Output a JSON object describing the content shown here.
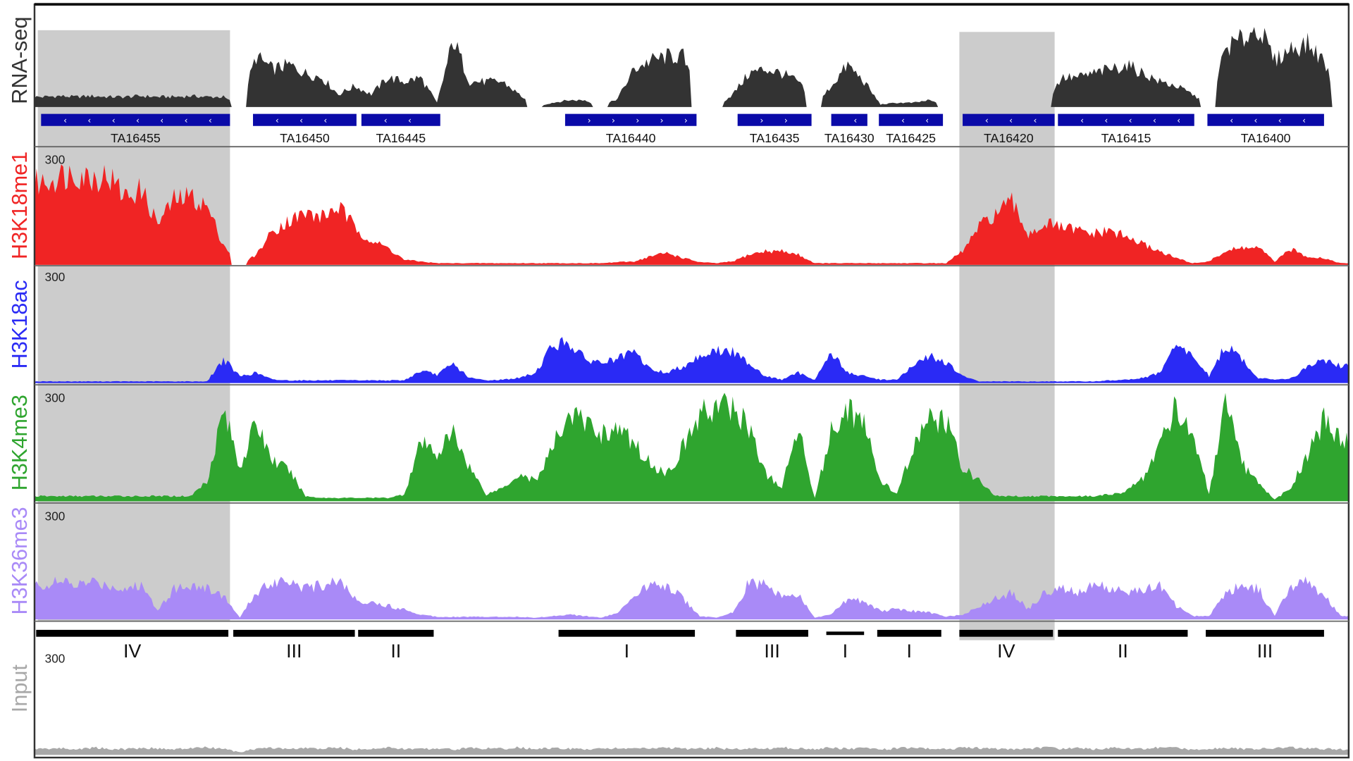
{
  "chart_data": {
    "type": "area",
    "title": "",
    "x_units": "genomic bins",
    "xlim": [
      0,
      80
    ],
    "tracks": [
      {
        "name": "RNA-seq",
        "color": "#333333",
        "scale_label": null,
        "ymax": 100,
        "values": [
          12,
          13,
          12,
          13,
          12,
          12,
          13,
          12,
          12,
          13,
          12,
          12,
          0,
          60,
          45,
          50,
          40,
          35,
          15,
          25,
          15,
          35,
          30,
          35,
          5,
          80,
          30,
          30,
          30,
          15,
          0,
          5,
          8,
          8,
          0,
          10,
          45,
          55,
          60,
          60,
          0,
          0,
          15,
          40,
          45,
          40,
          30,
          0,
          25,
          50,
          30,
          3,
          5,
          5,
          8,
          0,
          0,
          0,
          0,
          0,
          0,
          0,
          35,
          35,
          40,
          45,
          50,
          40,
          30,
          25,
          15,
          0,
          70,
          80,
          95,
          55,
          70,
          75,
          55,
          0
        ]
      },
      {
        "name": "H3K18me1",
        "color": "#f02424",
        "scale_label": "300",
        "ymax": 300,
        "values": [
          240,
          260,
          270,
          255,
          260,
          200,
          220,
          120,
          190,
          200,
          170,
          60,
          0,
          30,
          100,
          130,
          150,
          140,
          170,
          110,
          70,
          50,
          15,
          10,
          5,
          5,
          5,
          5,
          5,
          5,
          5,
          5,
          5,
          5,
          5,
          8,
          10,
          25,
          35,
          20,
          8,
          5,
          10,
          30,
          40,
          40,
          30,
          5,
          5,
          5,
          5,
          5,
          5,
          5,
          5,
          5,
          40,
          110,
          150,
          180,
          90,
          120,
          110,
          100,
          90,
          100,
          80,
          60,
          40,
          20,
          5,
          10,
          40,
          50,
          50,
          10,
          45,
          25,
          20,
          5
        ]
      },
      {
        "name": "H3K18ac",
        "color": "#2a2af5",
        "scale_label": "300",
        "ymax": 300,
        "values": [
          5,
          5,
          5,
          5,
          5,
          5,
          5,
          5,
          5,
          5,
          5,
          70,
          20,
          30,
          10,
          8,
          8,
          8,
          8,
          8,
          8,
          8,
          8,
          35,
          25,
          55,
          15,
          8,
          10,
          15,
          30,
          110,
          120,
          70,
          60,
          70,
          90,
          40,
          30,
          50,
          80,
          95,
          90,
          60,
          20,
          10,
          30,
          10,
          90,
          30,
          20,
          10,
          10,
          50,
          80,
          60,
          20,
          5,
          5,
          5,
          5,
          5,
          5,
          5,
          5,
          8,
          10,
          15,
          30,
          110,
          80,
          20,
          110,
          70,
          15,
          10,
          15,
          45,
          70,
          50
        ]
      },
      {
        "name": "H3K4me3",
        "color": "#2fa52f",
        "scale_label": "300",
        "ymax": 300,
        "values": [
          15,
          15,
          15,
          15,
          15,
          15,
          15,
          15,
          15,
          15,
          60,
          270,
          100,
          230,
          120,
          90,
          15,
          10,
          10,
          10,
          10,
          10,
          20,
          170,
          140,
          200,
          100,
          20,
          40,
          80,
          60,
          150,
          260,
          230,
          200,
          210,
          170,
          110,
          80,
          160,
          250,
          280,
          270,
          220,
          80,
          40,
          220,
          10,
          200,
          280,
          220,
          60,
          20,
          160,
          240,
          230,
          100,
          60,
          15,
          15,
          15,
          15,
          15,
          15,
          15,
          20,
          30,
          70,
          170,
          280,
          200,
          20,
          280,
          110,
          50,
          5,
          40,
          140,
          240,
          180
        ]
      },
      {
        "name": "H3K36me3",
        "color": "#a98af7",
        "scale_label": "300",
        "ymax": 300,
        "values": [
          100,
          110,
          100,
          110,
          100,
          90,
          100,
          30,
          90,
          100,
          90,
          70,
          5,
          80,
          110,
          120,
          90,
          100,
          120,
          60,
          50,
          40,
          30,
          15,
          8,
          8,
          8,
          8,
          8,
          8,
          5,
          10,
          15,
          10,
          5,
          20,
          60,
          110,
          100,
          60,
          10,
          5,
          20,
          110,
          100,
          70,
          70,
          5,
          15,
          60,
          55,
          25,
          30,
          25,
          20,
          8,
          15,
          40,
          60,
          80,
          30,
          80,
          90,
          80,
          100,
          90,
          80,
          85,
          100,
          40,
          10,
          10,
          80,
          100,
          90,
          10,
          100,
          110,
          70,
          10
        ]
      },
      {
        "name": "Input",
        "color": "#a8a8a8",
        "scale_label": "300",
        "ymax": 300,
        "values": [
          20,
          22,
          18,
          24,
          20,
          19,
          23,
          21,
          18,
          22,
          24,
          20,
          8,
          21,
          23,
          19,
          22,
          20,
          24,
          18,
          21,
          23,
          20,
          19,
          22,
          18,
          23,
          21,
          20,
          24,
          19,
          22,
          20,
          18,
          23,
          21,
          22,
          20,
          24,
          19,
          21,
          23,
          18,
          22,
          20,
          24,
          21,
          19,
          23,
          20,
          22,
          18,
          21,
          24,
          20,
          19,
          23,
          22,
          20,
          18,
          21,
          24,
          20,
          22,
          19,
          23,
          21,
          20,
          24,
          22,
          18,
          21,
          23,
          20,
          19,
          22,
          24,
          21,
          20,
          18
        ]
      }
    ],
    "genes": [
      {
        "name": "TA16455",
        "strand": "-",
        "start": 0.4,
        "end": 11.9
      },
      {
        "name": "TA16450",
        "strand": "-",
        "start": 13.3,
        "end": 19.6
      },
      {
        "name": "TA16445",
        "strand": "-",
        "start": 19.9,
        "end": 24.7
      },
      {
        "name": "TA16440",
        "strand": "+",
        "start": 32.3,
        "end": 40.3
      },
      {
        "name": "TA16435",
        "strand": "+",
        "start": 42.8,
        "end": 47.3
      },
      {
        "name": "TA16430",
        "strand": "-",
        "start": 48.5,
        "end": 50.7
      },
      {
        "name": "TA16425",
        "strand": "-",
        "start": 51.4,
        "end": 55.3
      },
      {
        "name": "TA16420",
        "strand": "-",
        "start": 56.5,
        "end": 62.1
      },
      {
        "name": "TA16415",
        "strand": "-",
        "start": 62.3,
        "end": 70.6
      },
      {
        "name": "TA16400",
        "strand": "-",
        "start": 71.4,
        "end": 78.5
      }
    ],
    "gene_color": "#0a0aa8",
    "states": [
      {
        "label": "IV",
        "start": 0.1,
        "end": 11.8
      },
      {
        "label": "III",
        "start": 12.1,
        "end": 19.5
      },
      {
        "label": "II",
        "start": 19.7,
        "end": 24.3
      },
      {
        "label": "I",
        "start": 31.9,
        "end": 40.2
      },
      {
        "label": "III",
        "start": 42.7,
        "end": 47.1
      },
      {
        "label": "I",
        "start": 48.2,
        "end": 50.5
      },
      {
        "label": "I",
        "start": 51.3,
        "end": 55.2
      },
      {
        "label": "IV",
        "start": 56.3,
        "end": 62.0
      },
      {
        "label": "II",
        "start": 62.3,
        "end": 70.2
      },
      {
        "label": "III",
        "start": 71.3,
        "end": 78.5
      }
    ],
    "highlights": [
      {
        "start": 0.2,
        "end": 11.9,
        "color": "#cccccc"
      },
      {
        "start": 56.3,
        "end": 62.1,
        "color": "#cccccc"
      }
    ]
  }
}
